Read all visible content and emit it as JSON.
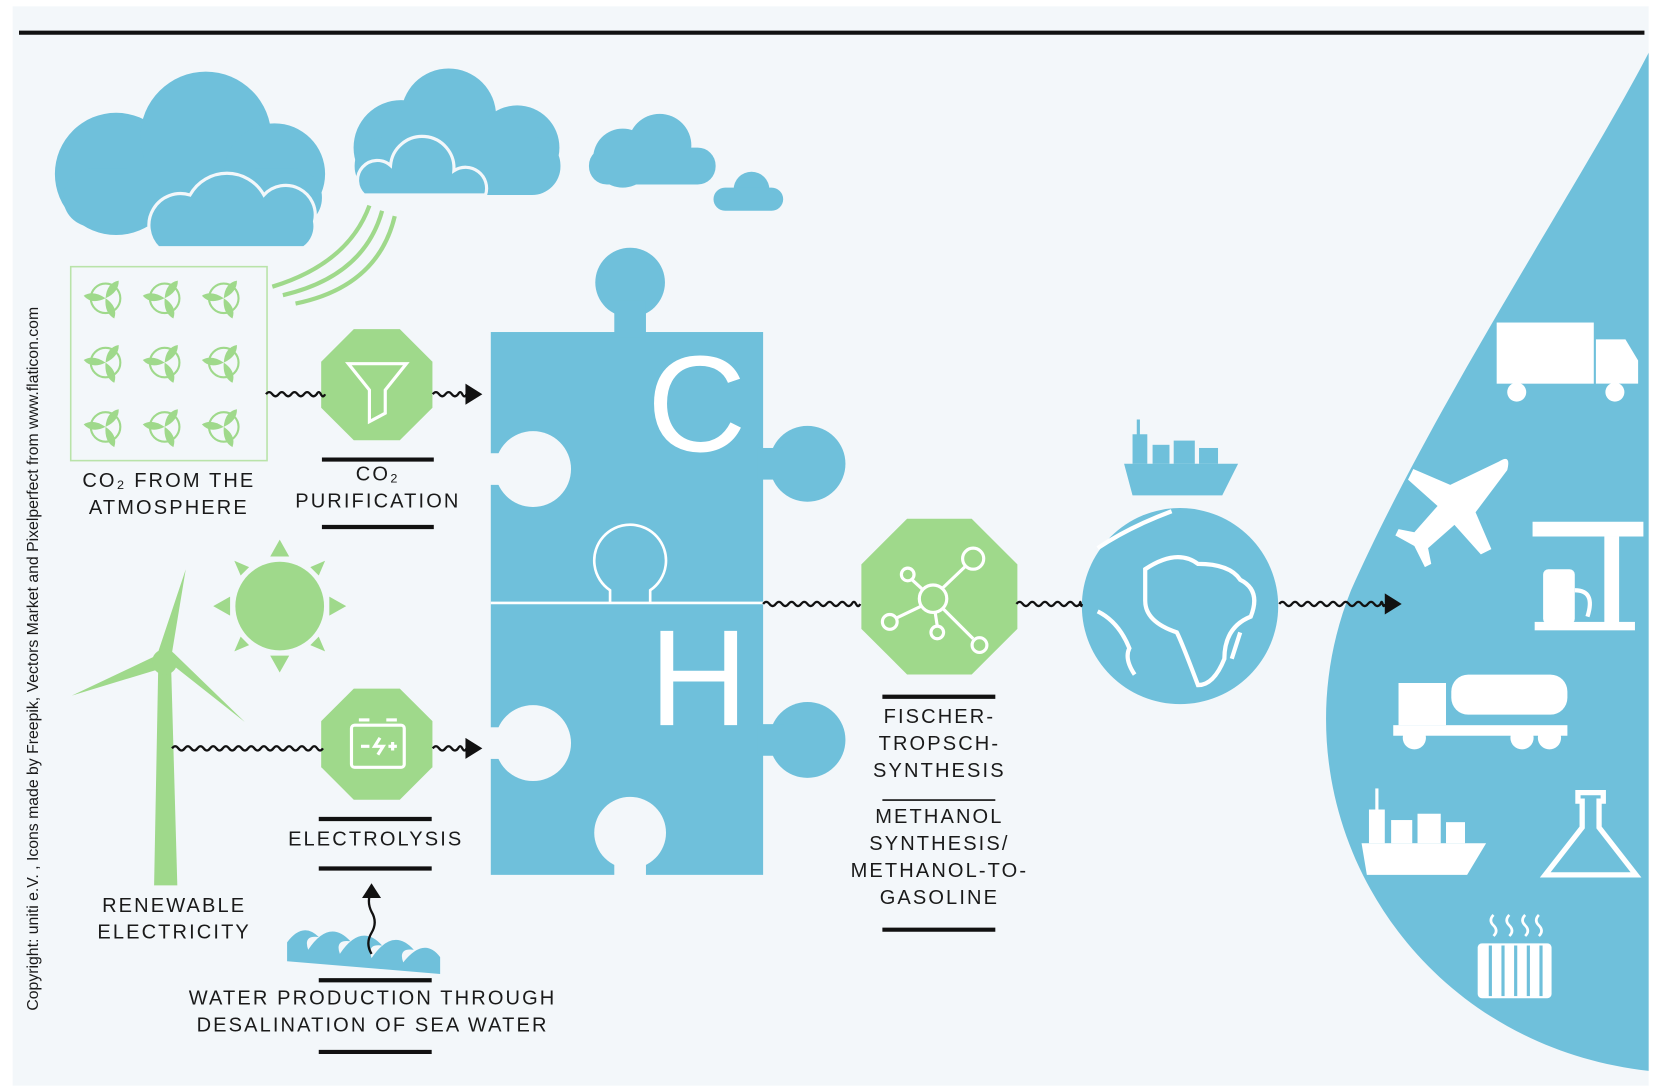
{
  "copyright": "Copyright: uniti e.V. , Icons made by Freepik, Vectors Market and Pixelperfect from www.flaticon.com",
  "puzzle": {
    "letters": [
      "C",
      "H"
    ]
  },
  "labels": {
    "co2_atmosphere": [
      "CO₂ FROM THE",
      "ATMOSPHERE"
    ],
    "co2_purification": [
      "CO₂",
      "PURIFICATION"
    ],
    "renewable_electricity": [
      "RENEWABLE",
      "ELECTRICITY"
    ],
    "electrolysis": [
      "ELECTROLYSIS"
    ],
    "water_production": [
      "WATER PRODUCTION THROUGH",
      "DESALINATION OF SEA WATER"
    ],
    "fischer_tropsch": [
      "FISCHER-",
      "TROPSCH-",
      "SYNTHESIS"
    ],
    "methanol": [
      "METHANOL",
      "SYNTHESIS/",
      "METHANOL-TO-",
      "GASOLINE"
    ]
  }
}
